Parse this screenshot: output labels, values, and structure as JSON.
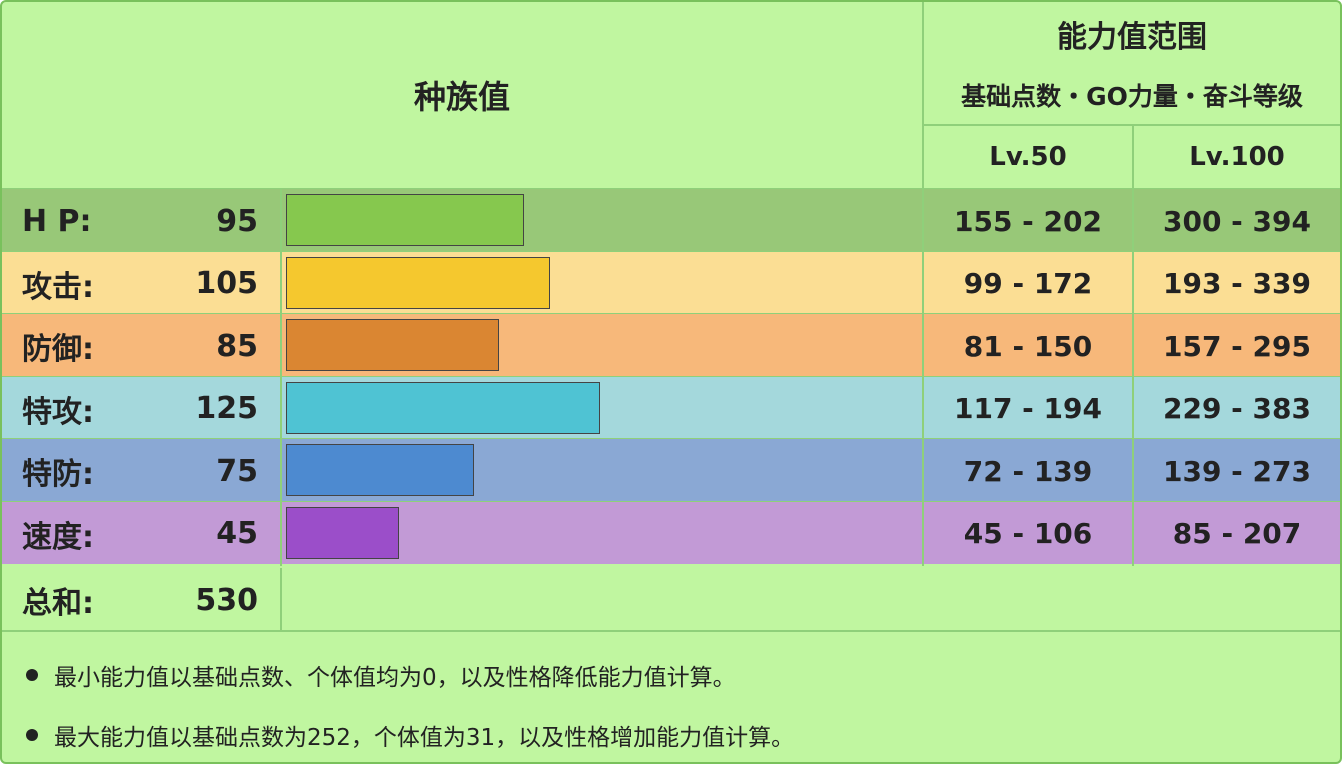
{
  "header": {
    "title": "种族值",
    "range_title": "能力值范围",
    "range_subtitle": "基础点数・GO力量・奋斗等级",
    "lv50": "Lv.50",
    "lv100": "Lv.100"
  },
  "chart_data": {
    "type": "bar",
    "categories": [
      "H P:",
      "攻击:",
      "防御:",
      "特攻:",
      "特防:",
      "速度:"
    ],
    "values": [
      95,
      105,
      85,
      125,
      75,
      45
    ],
    "value_labels": [
      "95",
      "105",
      "85",
      "125",
      "75",
      "45"
    ],
    "colors": [
      "#86c84e",
      "#f5c82e",
      "#da8632",
      "#4fc3d3",
      "#4d8ad0",
      "#9b4ec9"
    ],
    "row_colors": [
      "#98c878",
      "#fbde94",
      "#f7b87a",
      "#a4d8dc",
      "#8aa8d4",
      "#c29ad6"
    ],
    "ranges_lv50": [
      "155 - 202",
      "99 - 172",
      "81 - 150",
      "117 - 194",
      "72 - 139",
      "45 - 106"
    ],
    "ranges_lv100": [
      "300 - 394",
      "193 - 339",
      "157 - 295",
      "229 - 383",
      "139 - 273",
      "85 - 207"
    ],
    "xlim": [
      0,
      255
    ]
  },
  "total": {
    "label": "总和:",
    "value": "530"
  },
  "notes": [
    "最小能力值以基础点数、个体值均为0，以及性格降低能力值计算。",
    "最大能力值以基础点数为252，个体值为31，以及性格增加能力值计算。"
  ]
}
